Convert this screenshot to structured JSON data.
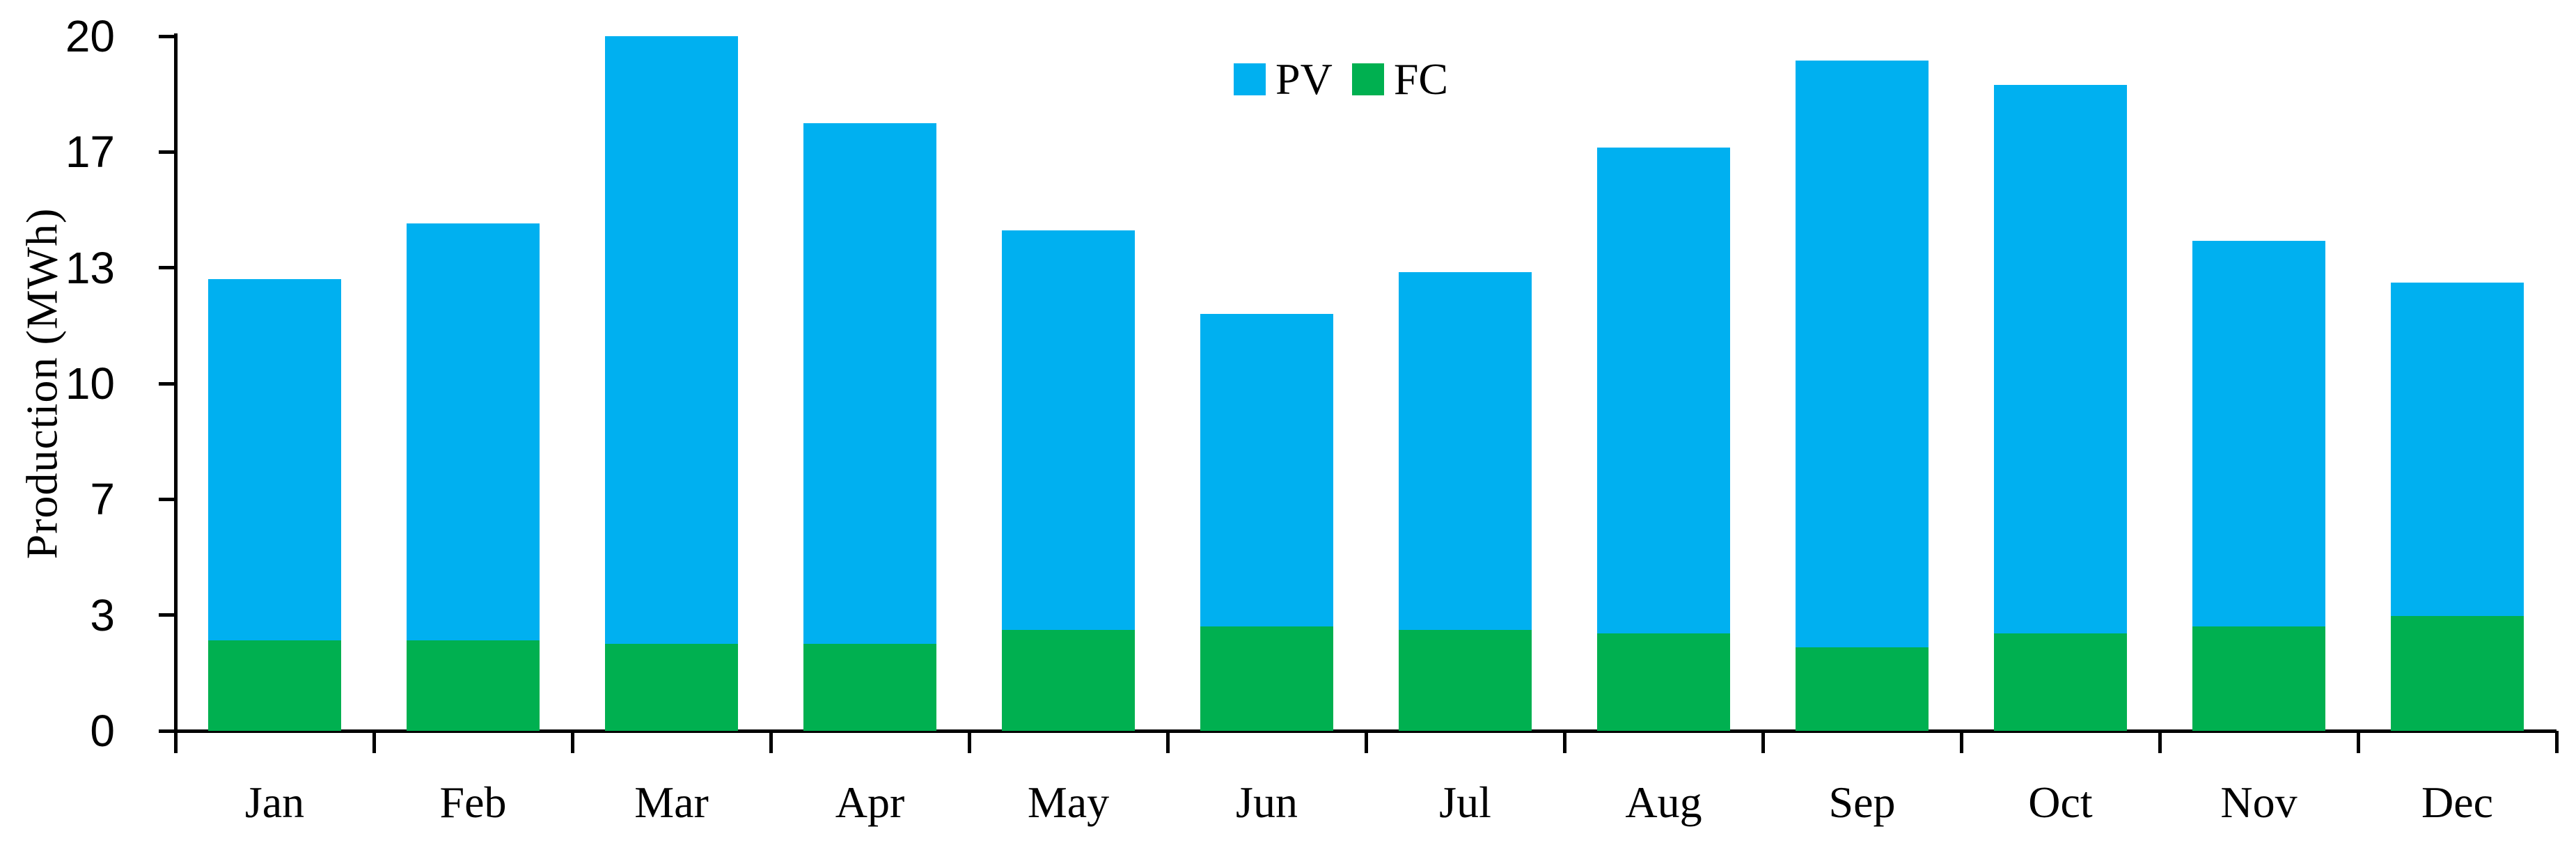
{
  "chart_data": {
    "type": "bar",
    "stacked": true,
    "title": "",
    "xlabel": "",
    "ylabel": "Production (MWh)",
    "categories": [
      "Jan",
      "Feb",
      "Mar",
      "Apr",
      "May",
      "Jun",
      "Jul",
      "Aug",
      "Sep",
      "Oct",
      "Nov",
      "Dec"
    ],
    "series": [
      {
        "name": "PV",
        "color": "#00B0F0",
        "values": [
          10.4,
          12.0,
          17.5,
          15.0,
          11.5,
          9.0,
          10.3,
          14.0,
          16.9,
          15.8,
          11.1,
          9.6
        ]
      },
      {
        "name": "FC",
        "color": "#00B050",
        "values": [
          2.6,
          2.6,
          2.5,
          2.5,
          2.9,
          3.0,
          2.9,
          2.8,
          2.4,
          2.8,
          3.0,
          3.3
        ]
      }
    ],
    "stack_order_bottom_to_top": [
      "FC",
      "PV"
    ],
    "totals": [
      13.0,
      14.6,
      20.0,
      17.5,
      14.4,
      12.0,
      13.2,
      16.8,
      19.3,
      18.6,
      14.1,
      12.9
    ],
    "y_axis": {
      "min": 0,
      "max": 20,
      "tick_values": [
        0,
        3.3333,
        6.6667,
        10,
        13.3333,
        16.6667,
        20
      ],
      "tick_labels": [
        "0",
        "3",
        "7",
        "10",
        "13",
        "17",
        "20"
      ]
    },
    "legend": {
      "position": "top-center",
      "entries": [
        "PV",
        "FC"
      ]
    },
    "grid": false,
    "axis_color": "#000000",
    "background_color": "#FFFFFF"
  }
}
